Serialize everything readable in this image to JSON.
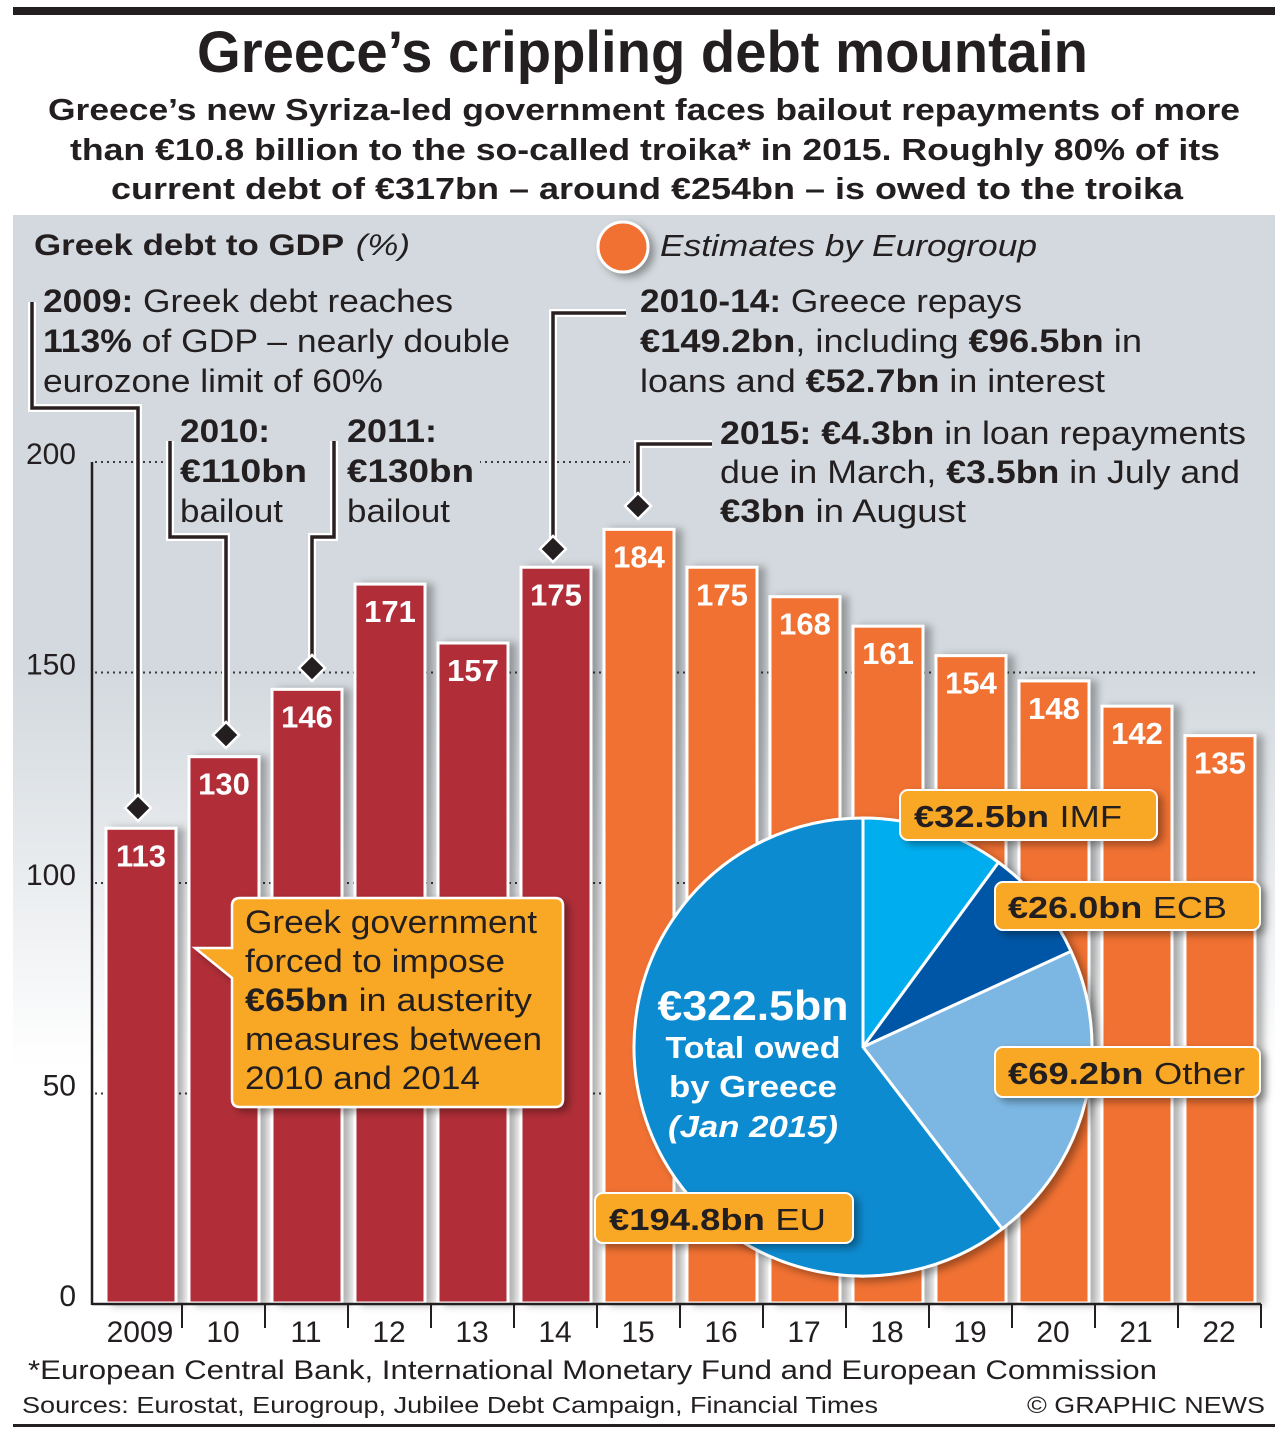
{
  "header": {
    "title": "Greece’s crippling debt mountain",
    "subtitle_lines": [
      "Greece’s new Syriza-led government faces bailout repayments of more",
      "than €10.8 billion to the so-called troika* in 2015. Roughly 80% of its",
      "current debt of €317bn – around €254bn – is owed to the troika"
    ]
  },
  "chart_data": [
    {
      "type": "bar",
      "title": "Greek debt to GDP",
      "title_unit": "(%)",
      "xlabel": "",
      "ylabel": "Greek debt to GDP (%)",
      "categories": [
        "2009",
        "10",
        "11",
        "12",
        "13",
        "14",
        "15",
        "16",
        "17",
        "18",
        "19",
        "20",
        "21",
        "22"
      ],
      "values": [
        113,
        130,
        146,
        171,
        157,
        175,
        184,
        175,
        168,
        161,
        154,
        148,
        142,
        135
      ],
      "estimate": [
        false,
        false,
        false,
        false,
        false,
        false,
        true,
        true,
        true,
        true,
        true,
        true,
        true,
        true
      ],
      "ylim": [
        0,
        200
      ],
      "yticks": [
        0,
        50,
        100,
        150,
        200
      ],
      "grid": true,
      "grid_style": "dotted horizontal",
      "legend": [
        {
          "label": "Estimates by Eurogroup",
          "color": "#f07130",
          "placement": "top-center"
        }
      ],
      "colors": {
        "actual": "#b12f37",
        "estimate": "#f07130"
      }
    },
    {
      "type": "pie",
      "title": "Total owed by Greece (Jan 2015)",
      "total": 322.5,
      "total_label": "€322.5bn",
      "center_lines": [
        "Total owed",
        "by Greece",
        "(Jan 2015)"
      ],
      "unit": "€bn",
      "slices": [
        {
          "name": "IMF",
          "value": 32.5,
          "value_label": "€32.5bn",
          "color": "#00aeef"
        },
        {
          "name": "ECB",
          "value": 26.0,
          "value_label": "€26.0bn",
          "color": "#0057a6"
        },
        {
          "name": "Other",
          "value": 69.2,
          "value_label": "€69.2bn",
          "color": "#7bb7e3"
        },
        {
          "name": "EU",
          "value": 194.8,
          "value_label": "€194.8bn",
          "color": "#0a8bd0"
        }
      ]
    }
  ],
  "annotations": {
    "y2009": [
      [
        {
          "text": "2009:",
          "bold": true
        },
        {
          "text": " Greek debt reaches",
          "bold": false
        }
      ],
      [
        {
          "text": "113%",
          "bold": true
        },
        {
          "text": " of GDP – nearly double",
          "bold": false
        }
      ],
      [
        {
          "text": "eurozone limit of 60%",
          "bold": false
        }
      ]
    ],
    "y2010": [
      [
        {
          "text": "2010:",
          "bold": true
        }
      ],
      [
        {
          "text": "€110bn",
          "bold": true
        }
      ],
      [
        {
          "text": "bailout",
          "bold": false
        }
      ]
    ],
    "y2011": [
      [
        {
          "text": "2011:",
          "bold": true
        }
      ],
      [
        {
          "text": "€130bn",
          "bold": true
        }
      ],
      [
        {
          "text": "bailout",
          "bold": false
        }
      ]
    ],
    "y2010_14": [
      [
        {
          "text": "2010-14:",
          "bold": true
        },
        {
          "text": " Greece repays",
          "bold": false
        }
      ],
      [
        {
          "text": "€149.2bn",
          "bold": true
        },
        {
          "text": ", including ",
          "bold": false
        },
        {
          "text": "€96.5bn",
          "bold": true
        },
        {
          "text": " in",
          "bold": false
        }
      ],
      [
        {
          "text": "loans and ",
          "bold": false
        },
        {
          "text": "€52.7bn",
          "bold": true
        },
        {
          "text": " in interest",
          "bold": false
        }
      ]
    ],
    "y2015": [
      [
        {
          "text": "2015: €4.3bn",
          "bold": true
        },
        {
          "text": " in loan repayments",
          "bold": false
        }
      ],
      [
        {
          "text": "due in March, ",
          "bold": false
        },
        {
          "text": "€3.5bn",
          "bold": true
        },
        {
          "text": " in July and",
          "bold": false
        }
      ],
      [
        {
          "text": "€3bn",
          "bold": true
        },
        {
          "text": " in August",
          "bold": false
        }
      ]
    ],
    "austerity": [
      [
        {
          "text": "Greek government",
          "bold": false
        }
      ],
      [
        {
          "text": "forced to impose",
          "bold": false
        }
      ],
      [
        {
          "text": "€65bn",
          "bold": true
        },
        {
          "text": " in austerity",
          "bold": false
        }
      ],
      [
        {
          "text": "measures between",
          "bold": false
        }
      ],
      [
        {
          "text": "2010 and 2014",
          "bold": false
        }
      ]
    ]
  },
  "footer": {
    "footnote": "*European Central Bank, International Monetary Fund and European Commission",
    "sources": "Sources: Eurostat, Eurogroup, Jubilee Debt Campaign, Financial Times",
    "credit": "© GRAPHIC NEWS"
  },
  "icons": {
    "legend_marker": "orange-circle-icon",
    "annotation_pointer": "diamond-icon"
  }
}
